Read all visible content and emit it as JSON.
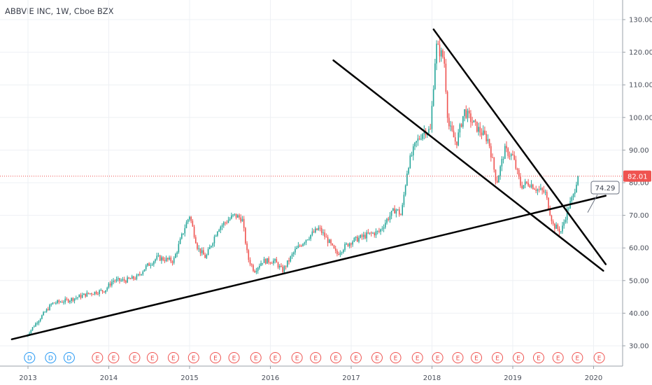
{
  "chart_title": "ABBVIE INC, 1W, Cboe BZX",
  "colors": {
    "up": "#26a69a",
    "down": "#ef5350",
    "trendline": "#000000",
    "price_line": "#ef5350",
    "dividend_marker": "#2196f3",
    "earnings_marker": "#ef5350"
  },
  "chart_data": {
    "type": "candlestick",
    "interval": "1W",
    "x_axis_ticks": [
      "2013",
      "2014",
      "2015",
      "2016",
      "2017",
      "2018",
      "2019",
      "2020"
    ],
    "y_axis_ticks": [
      "30.00",
      "40.00",
      "50.00",
      "60.00",
      "70.00",
      "80.00",
      "90.00",
      "100.00",
      "110.00",
      "120.00",
      "130.00"
    ],
    "ylim": [
      25,
      133
    ],
    "xlim": [
      2012.8,
      2020.3
    ],
    "grid": true,
    "last_price": "82.01",
    "trendline_label": "74.29",
    "price_path": [
      [
        2012.98,
        33
      ],
      [
        2013.1,
        37
      ],
      [
        2013.3,
        43
      ],
      [
        2013.5,
        44
      ],
      [
        2013.75,
        46
      ],
      [
        2013.95,
        47
      ],
      [
        2014.05,
        50
      ],
      [
        2014.2,
        50
      ],
      [
        2014.35,
        51
      ],
      [
        2014.45,
        54
      ],
      [
        2014.6,
        57
      ],
      [
        2014.8,
        56
      ],
      [
        2014.95,
        67
      ],
      [
        2015.0,
        70
      ],
      [
        2015.1,
        60
      ],
      [
        2015.2,
        57
      ],
      [
        2015.35,
        66
      ],
      [
        2015.45,
        68
      ],
      [
        2015.55,
        70
      ],
      [
        2015.65,
        69
      ],
      [
        2015.72,
        57
      ],
      [
        2015.8,
        53
      ],
      [
        2015.9,
        56
      ],
      [
        2016.05,
        56
      ],
      [
        2016.15,
        53
      ],
      [
        2016.3,
        59
      ],
      [
        2016.45,
        63
      ],
      [
        2016.6,
        66
      ],
      [
        2016.72,
        62
      ],
      [
        2016.82,
        58
      ],
      [
        2016.9,
        60
      ],
      [
        2017.0,
        62
      ],
      [
        2017.2,
        64
      ],
      [
        2017.35,
        65
      ],
      [
        2017.45,
        69
      ],
      [
        2017.55,
        72
      ],
      [
        2017.62,
        70
      ],
      [
        2017.7,
        85
      ],
      [
        2017.8,
        92
      ],
      [
        2017.9,
        96
      ],
      [
        2017.98,
        96
      ],
      [
        2018.05,
        122
      ],
      [
        2018.15,
        118
      ],
      [
        2018.2,
        98
      ],
      [
        2018.3,
        92
      ],
      [
        2018.4,
        102
      ],
      [
        2018.55,
        97
      ],
      [
        2018.7,
        93
      ],
      [
        2018.8,
        80
      ],
      [
        2018.9,
        90
      ],
      [
        2019.0,
        88
      ],
      [
        2019.1,
        79
      ],
      [
        2019.2,
        80
      ],
      [
        2019.3,
        78
      ],
      [
        2019.4,
        77
      ],
      [
        2019.5,
        67
      ],
      [
        2019.6,
        65
      ],
      [
        2019.68,
        72
      ],
      [
        2019.75,
        76
      ],
      [
        2019.8,
        82
      ],
      [
        2019.82,
        82
      ]
    ],
    "trendlines": [
      {
        "from": [
          2012.8,
          32
        ],
        "to": [
          2020.15,
          76
        ]
      },
      {
        "from": [
          2016.78,
          117.5
        ],
        "to": [
          2020.12,
          53
        ]
      },
      {
        "from": [
          2018.02,
          127
        ],
        "to": [
          2020.15,
          55
        ]
      }
    ],
    "event_markers": [
      {
        "x": 2013.02,
        "label": "D",
        "kind": "dividend"
      },
      {
        "x": 2013.28,
        "label": "D",
        "kind": "dividend"
      },
      {
        "x": 2013.51,
        "label": "D",
        "kind": "dividend"
      },
      {
        "x": 2013.86,
        "label": "E",
        "kind": "earnings"
      },
      {
        "x": 2014.06,
        "label": "E",
        "kind": "earnings"
      },
      {
        "x": 2014.32,
        "label": "E",
        "kind": "earnings"
      },
      {
        "x": 2014.54,
        "label": "E",
        "kind": "earnings"
      },
      {
        "x": 2014.8,
        "label": "E",
        "kind": "earnings"
      },
      {
        "x": 2015.05,
        "label": "E",
        "kind": "earnings"
      },
      {
        "x": 2015.32,
        "label": "E",
        "kind": "earnings"
      },
      {
        "x": 2015.55,
        "label": "E",
        "kind": "earnings"
      },
      {
        "x": 2015.82,
        "label": "E",
        "kind": "earnings"
      },
      {
        "x": 2016.06,
        "label": "E",
        "kind": "earnings"
      },
      {
        "x": 2016.33,
        "label": "E",
        "kind": "earnings"
      },
      {
        "x": 2016.56,
        "label": "E",
        "kind": "earnings"
      },
      {
        "x": 2016.81,
        "label": "E",
        "kind": "earnings"
      },
      {
        "x": 2017.06,
        "label": "E",
        "kind": "earnings"
      },
      {
        "x": 2017.32,
        "label": "E",
        "kind": "earnings"
      },
      {
        "x": 2017.55,
        "label": "E",
        "kind": "earnings"
      },
      {
        "x": 2017.82,
        "label": "E",
        "kind": "earnings"
      },
      {
        "x": 2018.07,
        "label": "E",
        "kind": "earnings"
      },
      {
        "x": 2018.32,
        "label": "E",
        "kind": "earnings"
      },
      {
        "x": 2018.55,
        "label": "E",
        "kind": "earnings"
      },
      {
        "x": 2018.81,
        "label": "E",
        "kind": "earnings"
      },
      {
        "x": 2019.07,
        "label": "E",
        "kind": "earnings"
      },
      {
        "x": 2019.32,
        "label": "E",
        "kind": "earnings"
      },
      {
        "x": 2019.56,
        "label": "E",
        "kind": "earnings"
      },
      {
        "x": 2019.8,
        "label": "E",
        "kind": "earnings"
      },
      {
        "x": 2020.07,
        "label": "E",
        "kind": "earnings"
      }
    ]
  }
}
